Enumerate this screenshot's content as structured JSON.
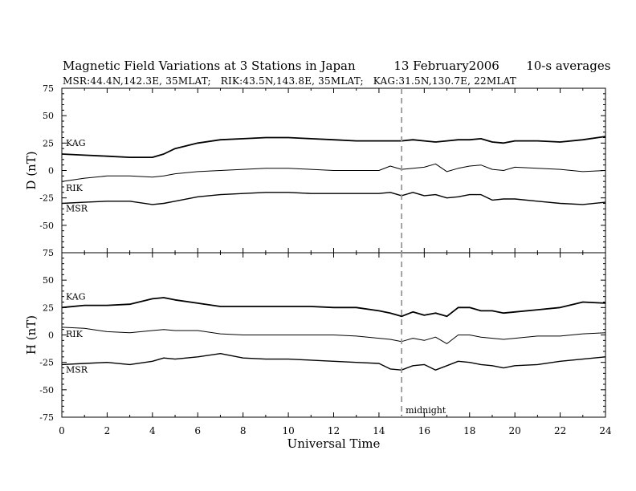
{
  "header": {
    "title": "Magnetic Field Variations at 3 Stations in Japan          13 February2006       10-s averages",
    "subtitle": "MSR:44.4N,142.3E, 35MLAT;   RIK:43.5N,143.8E, 35MLAT;   KAG:31.5N,130.7E, 22MLAT"
  },
  "xaxis": {
    "label": "Universal Time",
    "ticks": [
      "0",
      "2",
      "4",
      "6",
      "8",
      "10",
      "12",
      "14",
      "16",
      "18",
      "20",
      "22",
      "24"
    ],
    "range": [
      0,
      24
    ]
  },
  "annotation": {
    "midnight_label": "midnight",
    "midnight_ut": 15
  },
  "chart_data": [
    {
      "type": "line",
      "ylabel": "D (nT)",
      "ylim": [
        -75,
        75
      ],
      "yticks": [
        "75",
        "50",
        "25",
        "0",
        "-25",
        "-50",
        "-75"
      ],
      "x": [
        0,
        1,
        2,
        3,
        4,
        4.5,
        5,
        6,
        7,
        8,
        9,
        10,
        11,
        12,
        13,
        14,
        14.5,
        15,
        15.5,
        16,
        16.5,
        17,
        17.5,
        18,
        18.5,
        19,
        19.5,
        20,
        21,
        22,
        23,
        24
      ],
      "series": [
        {
          "name": "KAG",
          "values": [
            15,
            14,
            13,
            12,
            12,
            15,
            20,
            25,
            28,
            29,
            30,
            30,
            29,
            28,
            27,
            27,
            27,
            27,
            28,
            27,
            26,
            27,
            28,
            28,
            29,
            26,
            25,
            27,
            27,
            26,
            28,
            31
          ]
        },
        {
          "name": "RIK",
          "values": [
            -10,
            -7,
            -5,
            -5,
            -6,
            -5,
            -3,
            -1,
            0,
            1,
            2,
            2,
            1,
            0,
            0,
            0,
            4,
            1,
            2,
            3,
            6,
            -1,
            2,
            4,
            5,
            1,
            0,
            3,
            2,
            1,
            -1,
            0
          ]
        },
        {
          "name": "MSR",
          "values": [
            -30,
            -29,
            -28,
            -28,
            -31,
            -30,
            -28,
            -24,
            -22,
            -21,
            -20,
            -20,
            -21,
            -21,
            -21,
            -21,
            -20,
            -23,
            -20,
            -23,
            -22,
            -25,
            -24,
            -22,
            -22,
            -27,
            -26,
            -26,
            -28,
            -30,
            -31,
            -29
          ]
        }
      ]
    },
    {
      "type": "line",
      "ylabel": "H (nT)",
      "ylim": [
        -75,
        75
      ],
      "yticks": [
        "75",
        "50",
        "25",
        "0",
        "-25",
        "-50",
        "-75"
      ],
      "x": [
        0,
        1,
        2,
        3,
        4,
        4.5,
        5,
        6,
        7,
        8,
        9,
        10,
        11,
        12,
        13,
        14,
        14.5,
        15,
        15.5,
        16,
        16.5,
        17,
        17.5,
        18,
        18.5,
        19,
        19.5,
        20,
        21,
        22,
        23,
        24
      ],
      "series": [
        {
          "name": "KAG",
          "values": [
            25,
            27,
            27,
            28,
            33,
            34,
            32,
            29,
            26,
            26,
            26,
            26,
            26,
            25,
            25,
            22,
            20,
            17,
            21,
            18,
            20,
            17,
            25,
            25,
            22,
            22,
            20,
            21,
            23,
            25,
            30,
            29
          ]
        },
        {
          "name": "RIK",
          "values": [
            7,
            6,
            3,
            2,
            4,
            5,
            4,
            4,
            1,
            0,
            0,
            0,
            0,
            0,
            -1,
            -3,
            -4,
            -6,
            -3,
            -5,
            -2,
            -8,
            0,
            0,
            -2,
            -3,
            -4,
            -3,
            -1,
            -1,
            1,
            2
          ]
        },
        {
          "name": "MSR",
          "values": [
            -27,
            -26,
            -25,
            -27,
            -24,
            -21,
            -22,
            -20,
            -17,
            -21,
            -22,
            -22,
            -23,
            -24,
            -25,
            -26,
            -31,
            -32,
            -28,
            -27,
            -32,
            -28,
            -24,
            -25,
            -27,
            -28,
            -30,
            -28,
            -27,
            -24,
            -22,
            -20
          ]
        }
      ]
    }
  ]
}
